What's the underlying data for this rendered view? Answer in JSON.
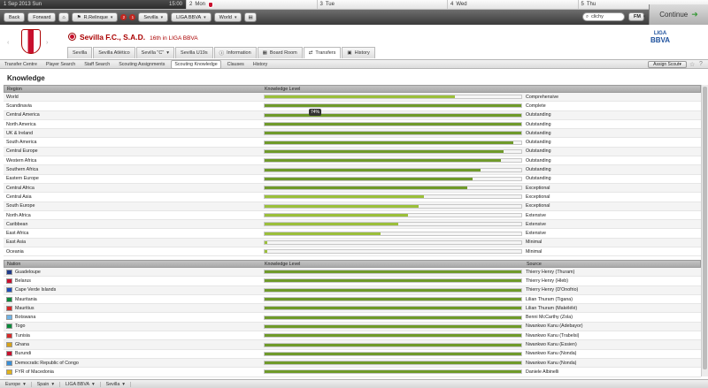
{
  "calendar": {
    "today_date": "1 Sep 2013",
    "today_day": "Sun",
    "time": "15:00",
    "days": [
      {
        "num": "2",
        "name": "Mon",
        "match": true
      },
      {
        "num": "3",
        "name": "Tue",
        "match": false
      },
      {
        "num": "4",
        "name": "Wed",
        "match": false
      },
      {
        "num": "5",
        "name": "Thu",
        "match": false
      }
    ]
  },
  "toolbar": {
    "back": "Back",
    "forward": "Forward",
    "manager": "R.Relinque",
    "badge1": "2",
    "badge2": "1",
    "club": "Sevilla",
    "league": "LIGA BBVA",
    "world": "World",
    "search_value": "clichy",
    "fm": "FM",
    "continue": "Continue"
  },
  "header": {
    "team_name": "Sevilla F.C., S.A.D.",
    "position": "16th in LIGA BBVA",
    "league_logo_line1": "LIGA",
    "league_logo_line2": "BBVA"
  },
  "tabs": [
    {
      "label": "Sevilla",
      "icon": ""
    },
    {
      "label": "Sevilla Atlético",
      "icon": ""
    },
    {
      "label": "Sevilla \"C\"",
      "icon": ""
    },
    {
      "label": "Sevilla U19s",
      "icon": ""
    },
    {
      "label": "Information",
      "icon": "info-icon"
    },
    {
      "label": "Board Room",
      "icon": "board-icon"
    },
    {
      "label": "Transfers",
      "icon": "transfers-icon"
    },
    {
      "label": "History",
      "icon": "history-icon"
    }
  ],
  "subtabs": [
    "Transfer Centre",
    "Player Search",
    "Staff Search",
    "Scouting Assignments",
    "Scouting Knowledge",
    "Clauses",
    "History"
  ],
  "assign_scout": "Assign Scout",
  "section_title": "Knowledge",
  "region_table": {
    "headers": [
      "Region",
      "Knowledge Level",
      ""
    ],
    "tooltip": "74%",
    "rows": [
      {
        "name": "World",
        "level": 0.74,
        "label": "Comprehensive"
      },
      {
        "name": "Scandinavia",
        "level": 1.0,
        "label": "Complete"
      },
      {
        "name": "Central America",
        "level": 1.0,
        "label": "Outstanding"
      },
      {
        "name": "North America",
        "level": 1.0,
        "label": "Outstanding"
      },
      {
        "name": "UK & Ireland",
        "level": 1.0,
        "label": "Outstanding"
      },
      {
        "name": "South America",
        "level": 0.97,
        "label": "Outstanding"
      },
      {
        "name": "Central Europe",
        "level": 0.93,
        "label": "Outstanding"
      },
      {
        "name": "Western Africa",
        "level": 0.92,
        "label": "Outstanding"
      },
      {
        "name": "Southern Africa",
        "level": 0.84,
        "label": "Outstanding"
      },
      {
        "name": "Eastern Europe",
        "level": 0.81,
        "label": "Outstanding"
      },
      {
        "name": "Central Africa",
        "level": 0.79,
        "label": "Exceptional"
      },
      {
        "name": "Central Asia",
        "level": 0.62,
        "label": "Exceptional"
      },
      {
        "name": "South Europe",
        "level": 0.6,
        "label": "Exceptional"
      },
      {
        "name": "North Africa",
        "level": 0.56,
        "label": "Extensive"
      },
      {
        "name": "Caribbean",
        "level": 0.52,
        "label": "Extensive"
      },
      {
        "name": "East Africa",
        "level": 0.45,
        "label": "Extensive"
      },
      {
        "name": "East Asia",
        "level": 0.01,
        "label": "Minimal"
      },
      {
        "name": "Oceania",
        "level": 0.01,
        "label": "Minimal"
      }
    ]
  },
  "nation_table": {
    "headers": [
      "Nation",
      "Knowledge Level",
      "Source"
    ],
    "rows": [
      {
        "name": "Guadeloupe",
        "level": 1.0,
        "source": "Thierry Henry (Thuram)",
        "flag": "#1e3a8a"
      },
      {
        "name": "Belarus",
        "level": 1.0,
        "source": "Thierry Henry (Hleb)",
        "flag": "#c8102e"
      },
      {
        "name": "Cape Verde Islands",
        "level": 1.0,
        "source": "Thierry Henry (D'Onofrio)",
        "flag": "#1e4fb8"
      },
      {
        "name": "Mauritania",
        "level": 1.0,
        "source": "Lilian Thuram (Tigana)",
        "flag": "#0a8a3a"
      },
      {
        "name": "Mauritius",
        "level": 1.0,
        "source": "Lilian Thuram (Makélélé)",
        "flag": "#d62a2a"
      },
      {
        "name": "Botswana",
        "level": 1.0,
        "source": "Benni McCarthy (Zola)",
        "flag": "#6fb3e6"
      },
      {
        "name": "Togo",
        "level": 1.0,
        "source": "Nwankwo Kanu (Adebayor)",
        "flag": "#0a8a3a"
      },
      {
        "name": "Tunisia",
        "level": 1.0,
        "source": "Nwankwo Kanu (Trabelsi)",
        "flag": "#d62a2a"
      },
      {
        "name": "Ghana",
        "level": 1.0,
        "source": "Nwankwo Kanu (Essien)",
        "flag": "#d6a21a"
      },
      {
        "name": "Burundi",
        "level": 1.0,
        "source": "Nwankwo Kanu (Nonda)",
        "flag": "#c8102e"
      },
      {
        "name": "Democratic Republic of Congo",
        "level": 1.0,
        "source": "Nwankwo Kanu (Nonda)",
        "flag": "#3a8fd6"
      },
      {
        "name": "FYR of Macedonia",
        "level": 1.0,
        "source": "Daniele Albinelli",
        "flag": "#e0b21a"
      }
    ]
  },
  "footer": [
    "Europe",
    "Spain",
    "LIGA BBVA",
    "Sevilla"
  ],
  "colors": {
    "bar_full": "#6f9a2a",
    "bar_light": "#9bbf3a",
    "accent": "#a00000"
  }
}
